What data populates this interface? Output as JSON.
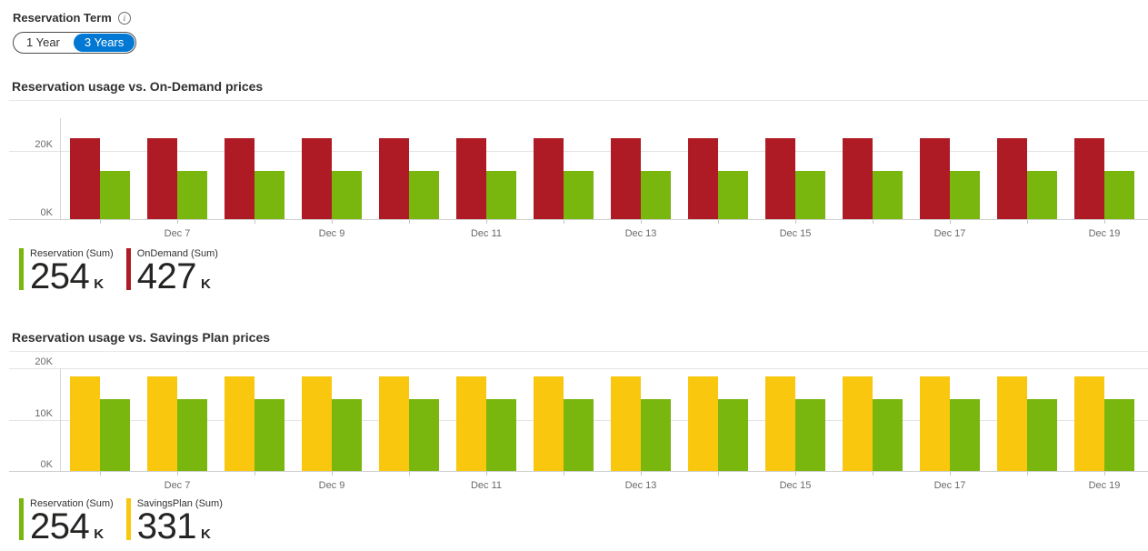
{
  "header": {
    "label": "Reservation Term",
    "info_glyph": "i",
    "toggle": {
      "options": [
        "1 Year",
        "3 Years"
      ],
      "selected": "3 Years"
    }
  },
  "colors": {
    "accent": "#0078D4",
    "reservation_green": "#79B60E",
    "ondemand_red": "#AE1B24",
    "savingsplan_yellow": "#F8C70E"
  },
  "chart_data": [
    {
      "type": "bar",
      "title": "Reservation usage vs. On-Demand prices",
      "categories": [
        "",
        "Dec 7",
        "",
        "Dec 9",
        "",
        "Dec 11",
        "",
        "Dec 13",
        "",
        "Dec 15",
        "",
        "Dec 17",
        "",
        "Dec 19"
      ],
      "series": [
        {
          "name": "OnDemand (Sum)",
          "color": "#AE1B24",
          "values": [
            23.7,
            23.7,
            23.7,
            23.7,
            23.7,
            23.7,
            23.7,
            23.7,
            23.7,
            23.7,
            23.7,
            23.7,
            23.7,
            23.7
          ]
        },
        {
          "name": "Reservation (Sum)",
          "color": "#79B60E",
          "values": [
            14.1,
            14.1,
            14.1,
            14.1,
            14.1,
            14.1,
            14.1,
            14.1,
            14.1,
            14.1,
            14.1,
            14.1,
            14.1,
            14.1
          ]
        }
      ],
      "yticks": [
        {
          "label": "0K",
          "value": 0
        },
        {
          "label": "20K",
          "value": 20
        }
      ],
      "ylim": [
        0,
        30
      ],
      "unit": "K",
      "grid": true,
      "legend_position": "bottom-left",
      "legend": [
        {
          "name": "Reservation (Sum)",
          "value": "254",
          "unit": "K",
          "color": "#79B60E"
        },
        {
          "name": "OnDemand (Sum)",
          "value": "427",
          "unit": "K",
          "color": "#AE1B24"
        }
      ]
    },
    {
      "type": "bar",
      "title": "Reservation usage vs. Savings Plan prices",
      "categories": [
        "",
        "Dec 7",
        "",
        "Dec 9",
        "",
        "Dec 11",
        "",
        "Dec 13",
        "",
        "Dec 15",
        "",
        "Dec 17",
        "",
        "Dec 19"
      ],
      "series": [
        {
          "name": "SavingsPlan (Sum)",
          "color": "#F8C70E",
          "values": [
            18.4,
            18.4,
            18.4,
            18.4,
            18.4,
            18.4,
            18.4,
            18.4,
            18.4,
            18.4,
            18.4,
            18.4,
            18.4,
            18.4
          ]
        },
        {
          "name": "Reservation (Sum)",
          "color": "#79B60E",
          "values": [
            14.1,
            14.1,
            14.1,
            14.1,
            14.1,
            14.1,
            14.1,
            14.1,
            14.1,
            14.1,
            14.1,
            14.1,
            14.1,
            14.1
          ]
        }
      ],
      "yticks": [
        {
          "label": "0K",
          "value": 0
        },
        {
          "label": "10K",
          "value": 10
        },
        {
          "label": "20K",
          "value": 20
        }
      ],
      "ylim": [
        0,
        22
      ],
      "unit": "K",
      "grid": true,
      "legend_position": "bottom-left",
      "legend": [
        {
          "name": "Reservation (Sum)",
          "value": "254",
          "unit": "K",
          "color": "#79B60E"
        },
        {
          "name": "SavingsPlan (Sum)",
          "value": "331",
          "unit": "K",
          "color": "#F8C70E"
        }
      ]
    }
  ]
}
